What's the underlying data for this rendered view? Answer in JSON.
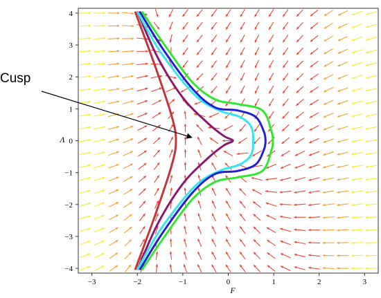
{
  "chart_data": {
    "type": "phase-portrait",
    "xlabel": "F",
    "ylabel": "Λ",
    "xlim": [
      -3.3,
      3.3
    ],
    "ylim": [
      -4.15,
      4.15
    ],
    "x_ticks": [
      -3,
      -2,
      -1,
      0,
      1,
      2,
      3
    ],
    "y_ticks": [
      -4,
      -3,
      -2,
      -1,
      0,
      1,
      2,
      3,
      4
    ],
    "grid": false,
    "annotation": {
      "text": "Cusp",
      "points_to": [
        -0.8,
        0.1
      ]
    },
    "field_colors": {
      "low": "#f9ec2a",
      "mid": "#f5a030",
      "high": "#ec4530"
    },
    "curves": [
      {
        "color": "#c2363b",
        "points": [
          [
            -2.05,
            4.05
          ],
          [
            -1.6,
            2.3
          ],
          [
            -1.25,
            0.8
          ],
          [
            -1.15,
            0.0
          ],
          [
            -1.25,
            -0.8
          ],
          [
            -1.6,
            -2.3
          ],
          [
            -2.05,
            -4.05
          ]
        ]
      },
      {
        "color": "#8b1a6c",
        "points": [
          [
            -2.0,
            4.05
          ],
          [
            -1.55,
            2.6
          ],
          [
            -1.0,
            1.35
          ],
          [
            -0.45,
            0.55
          ],
          [
            -0.1,
            0.15
          ],
          [
            0.1,
            0.0
          ],
          [
            -0.1,
            -0.15
          ],
          [
            -0.45,
            -0.55
          ],
          [
            -1.0,
            -1.35
          ],
          [
            -1.55,
            -2.6
          ],
          [
            -2.0,
            -4.05
          ]
        ]
      },
      {
        "color": "#35e6ee",
        "points": [
          [
            -2.0,
            4.05
          ],
          [
            -1.5,
            2.8
          ],
          [
            -0.75,
            1.45
          ],
          [
            -0.2,
            0.95
          ],
          [
            0.25,
            0.75
          ],
          [
            0.5,
            0.45
          ],
          [
            0.55,
            0.0
          ],
          [
            0.5,
            -0.45
          ],
          [
            0.25,
            -0.75
          ],
          [
            -0.2,
            -0.95
          ],
          [
            -0.75,
            -1.45
          ],
          [
            -1.5,
            -2.8
          ],
          [
            -2.0,
            -4.05
          ]
        ]
      },
      {
        "color": "#1f1fd6",
        "points": [
          [
            -1.95,
            4.05
          ],
          [
            -1.45,
            2.9
          ],
          [
            -0.8,
            1.65
          ],
          [
            -0.3,
            1.05
          ],
          [
            0.2,
            0.95
          ],
          [
            0.6,
            0.75
          ],
          [
            0.78,
            0.3
          ],
          [
            0.82,
            0.0
          ],
          [
            0.78,
            -0.3
          ],
          [
            0.6,
            -0.75
          ],
          [
            0.2,
            -0.95
          ],
          [
            -0.3,
            -1.05
          ],
          [
            -0.8,
            -1.65
          ],
          [
            -1.45,
            -2.9
          ],
          [
            -1.95,
            -4.05
          ]
        ]
      },
      {
        "color": "#2fe82f",
        "points": [
          [
            -1.9,
            4.05
          ],
          [
            -1.4,
            3.0
          ],
          [
            -0.8,
            1.85
          ],
          [
            -0.3,
            1.3
          ],
          [
            0.2,
            1.15
          ],
          [
            0.75,
            0.95
          ],
          [
            0.95,
            0.3
          ],
          [
            0.98,
            0.0
          ],
          [
            0.95,
            -0.3
          ],
          [
            0.75,
            -0.95
          ],
          [
            0.2,
            -1.15
          ],
          [
            -0.3,
            -1.3
          ],
          [
            -0.8,
            -1.85
          ],
          [
            -1.4,
            -3.0
          ],
          [
            -1.9,
            -4.05
          ]
        ]
      }
    ]
  }
}
